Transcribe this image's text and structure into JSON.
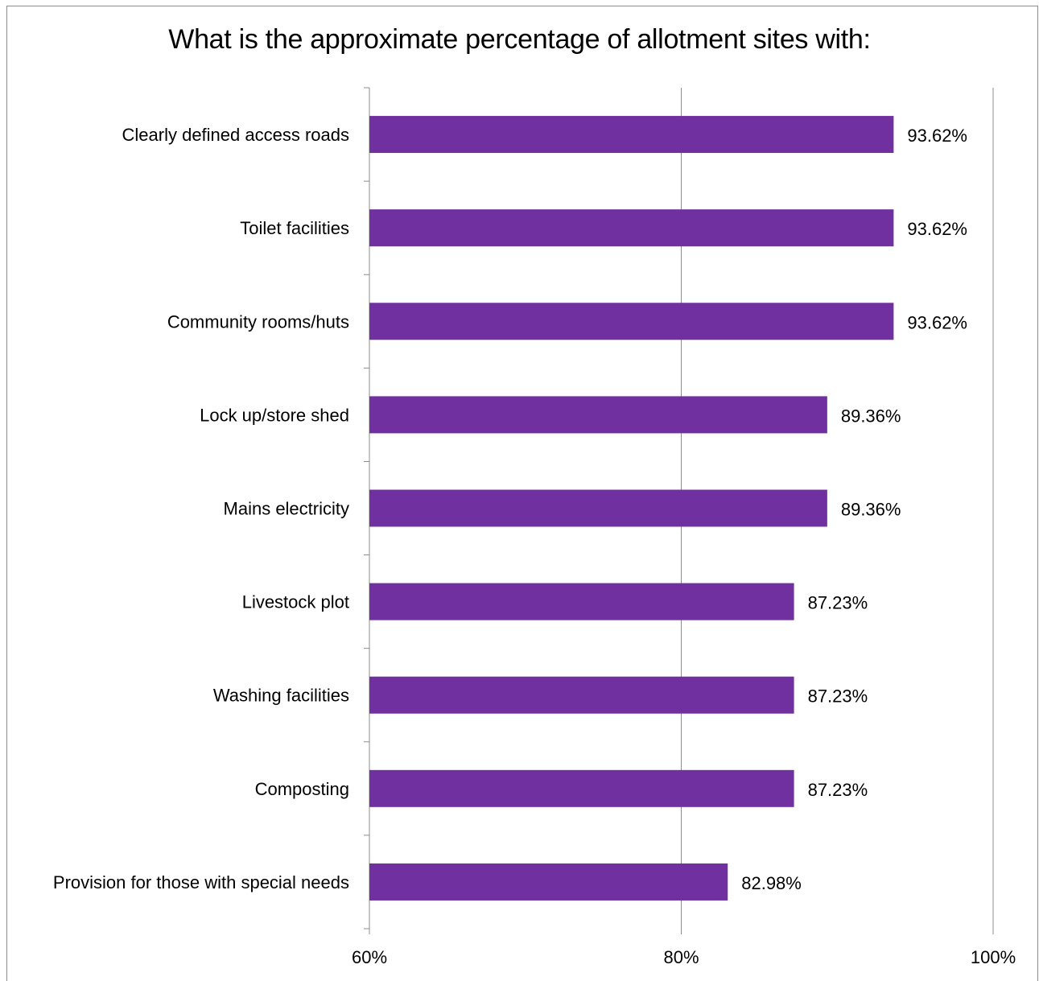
{
  "chart_data": {
    "type": "bar",
    "orientation": "horizontal",
    "title": "What is the approximate percentage of allotment sites with:",
    "categories": [
      "Clearly defined access roads",
      "Toilet facilities",
      "Community rooms/huts",
      "Lock up/store shed",
      "Mains electricity",
      "Livestock plot",
      "Washing facilities",
      "Composting",
      "Provision for those with special needs"
    ],
    "values": [
      93.62,
      93.62,
      93.62,
      89.36,
      89.36,
      87.23,
      87.23,
      87.23,
      82.98
    ],
    "data_labels": [
      "93.62%",
      "93.62%",
      "93.62%",
      "89.36%",
      "89.36%",
      "87.23%",
      "87.23%",
      "87.23%",
      "82.98%"
    ],
    "xlim": [
      60,
      100
    ],
    "x_ticks": [
      60,
      80,
      100
    ],
    "x_tick_labels": [
      "60%",
      "80%",
      "100%"
    ],
    "xlabel": "",
    "ylabel": "",
    "grid": "vertical major gridlines",
    "legend": "none",
    "bar_color": "#7030a0"
  }
}
